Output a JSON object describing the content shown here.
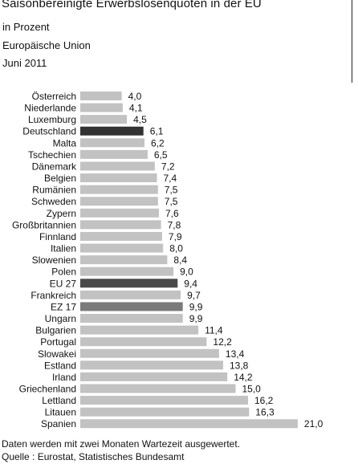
{
  "header": {
    "title": "Saisonbereinigte Erwerbslosenquoten in der EU",
    "unit": "in Prozent",
    "region": "Europäische Union",
    "date": "Juni 2011"
  },
  "footer": {
    "note": "Daten werden mit zwei Monaten Wartezeit ausgewertet.",
    "source": "Quelle : Eurostat, Statistisches Bundesamt"
  },
  "colors": {
    "default_bar": "#c2c2c2",
    "deutschland_bar": "#333333",
    "eu27_bar": "#4a4a4a",
    "ez17_bar": "#7a7a7a"
  },
  "chart_data": {
    "type": "bar",
    "orientation": "horizontal",
    "categories": [
      "Österreich",
      "Niederlande",
      "Luxemburg",
      "Deutschland",
      "Malta",
      "Tschechien",
      "Dänemark",
      "Belgien",
      "Rumänien",
      "Schweden",
      "Zypern",
      "Großbritannien",
      "Finnland",
      "Italien",
      "Slowenien",
      "Polen",
      "EU 27",
      "Frankreich",
      "EZ 17",
      "Ungarn",
      "Bulgarien",
      "Portugal",
      "Slowakei",
      "Estland",
      "Irland",
      "Griechenland",
      "Lettland",
      "Litauen",
      "Spanien"
    ],
    "values": [
      4.0,
      4.1,
      4.5,
      6.1,
      6.2,
      6.5,
      7.2,
      7.4,
      7.5,
      7.5,
      7.6,
      7.8,
      7.9,
      8.0,
      8.4,
      9.0,
      9.4,
      9.7,
      9.9,
      9.9,
      11.4,
      12.2,
      13.4,
      13.8,
      14.2,
      15.0,
      16.2,
      16.3,
      21.0
    ],
    "value_labels": [
      "4,0",
      "4,1",
      "4,5",
      "6,1",
      "6,2",
      "6,5",
      "7,2",
      "7,4",
      "7,5",
      "7,5",
      "7,6",
      "7,8",
      "7,9",
      "8,0",
      "8,4",
      "9,0",
      "9,4",
      "9,7",
      "9,9",
      "9,9",
      "11,4",
      "12,2",
      "13,4",
      "13,8",
      "14,2",
      "15,0",
      "16,2",
      "16,3",
      "21,0"
    ],
    "highlights": {
      "Deutschland": "deutschland_bar",
      "EU 27": "eu27_bar",
      "EZ 17": "ez17_bar"
    },
    "xlim": [
      0,
      21.0
    ],
    "grid": false,
    "legend": "none"
  }
}
